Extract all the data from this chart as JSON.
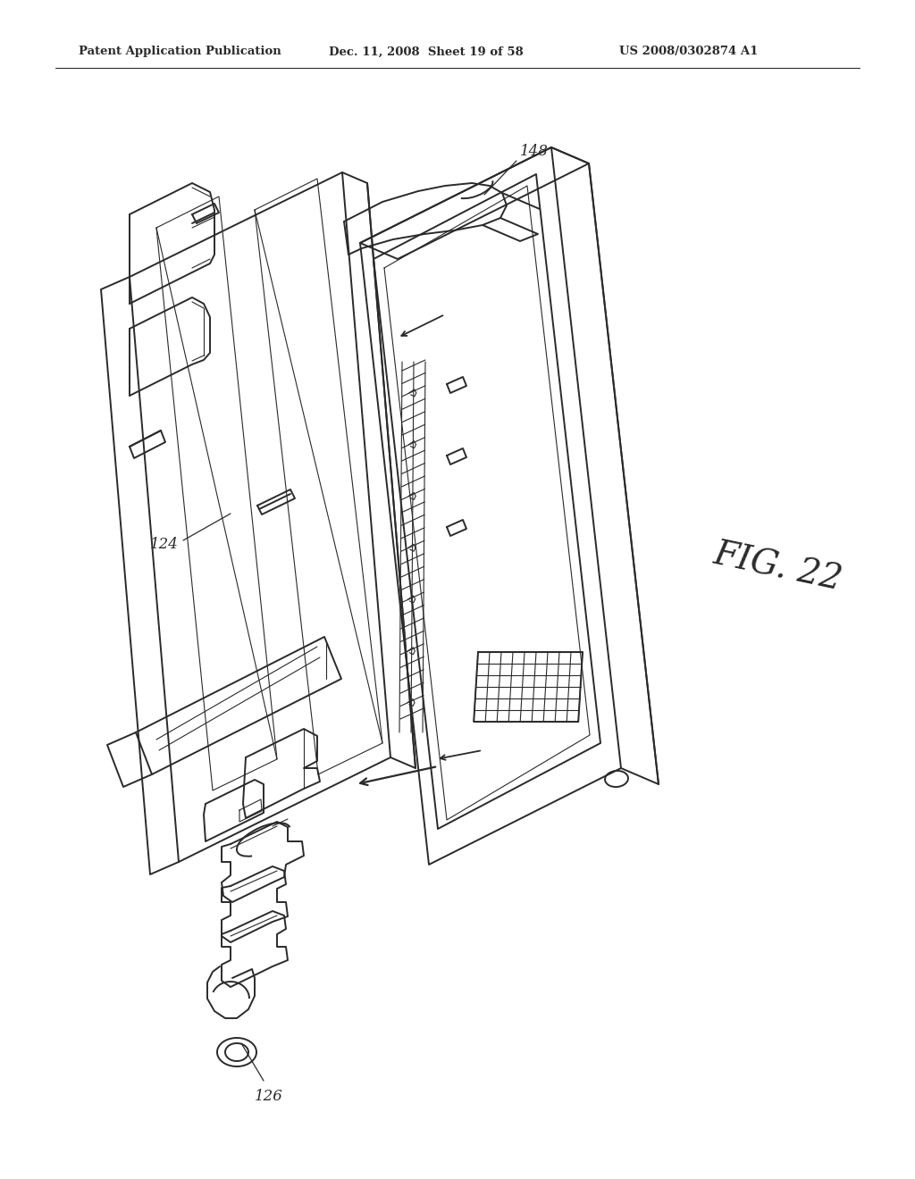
{
  "header_left": "Patent Application Publication",
  "header_mid": "Dec. 11, 2008  Sheet 19 of 58",
  "header_right": "US 2008/0302874 A1",
  "fig_label": "FIG. 22",
  "ref_124": "124",
  "ref_126": "126",
  "ref_148": "148",
  "background_color": "#ffffff",
  "line_color": "#2a2a2a",
  "lw": 1.4,
  "tlw": 0.8
}
